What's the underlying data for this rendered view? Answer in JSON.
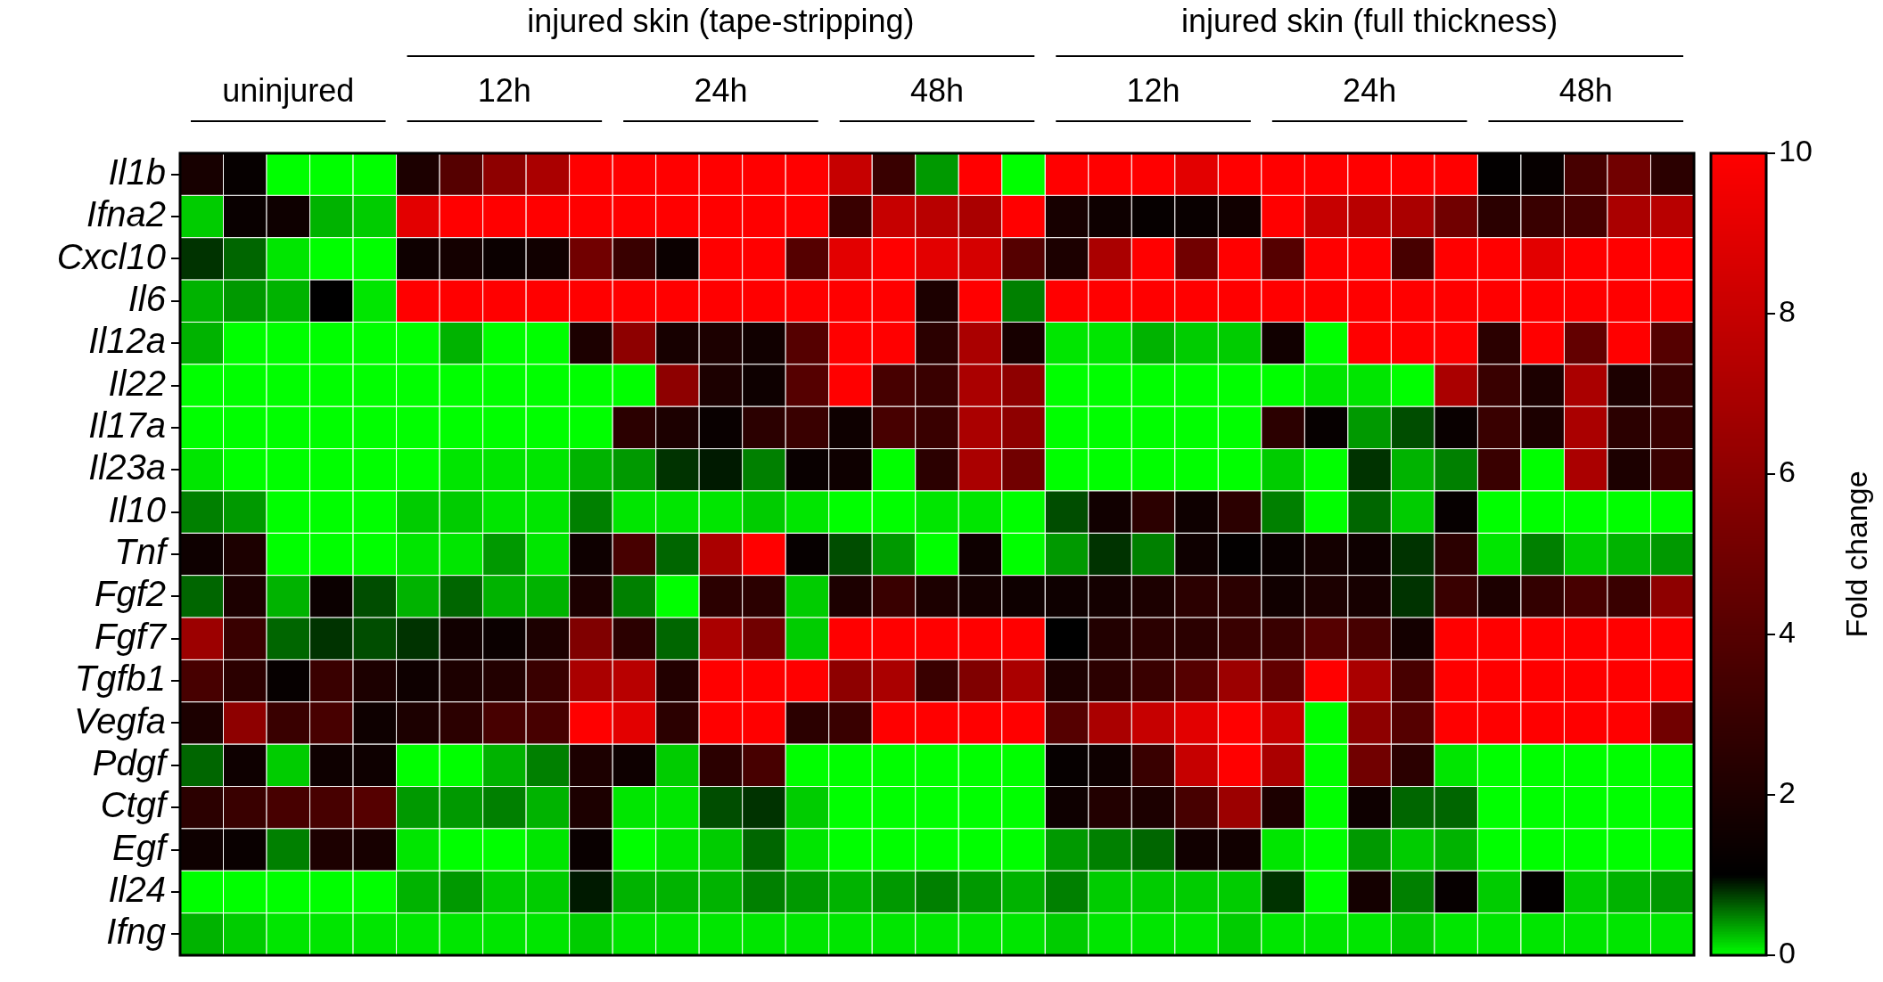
{
  "chart_data": {
    "type": "heatmap",
    "categories": [
      null,
      null,
      null,
      null,
      null,
      null,
      null,
      null,
      null,
      null,
      null,
      null,
      null,
      null,
      null,
      null,
      null,
      null,
      null,
      null,
      null,
      null,
      null,
      null,
      null,
      null,
      null,
      null,
      null,
      null,
      null,
      null,
      null,
      null,
      null
    ],
    "y_categories": [
      "Il1b",
      "Ifna2",
      "Cxcl10",
      "Il6",
      "Il12a",
      "Il22",
      "Il17a",
      "Il23a",
      "Il10",
      "Tnf",
      "Fgf2",
      "Fgf7",
      "Tgfb1",
      "Vegfa",
      "Pdgf",
      "Ctgf",
      "Egf",
      "Il24",
      "Ifng"
    ],
    "cells": [
      [
        1.8,
        1.2,
        0,
        0,
        0,
        2,
        4,
        6,
        7,
        10,
        10,
        10,
        10,
        10,
        10,
        8,
        3,
        0.4,
        10,
        0,
        10,
        10,
        10,
        9,
        10,
        10,
        10,
        10,
        10,
        10,
        1.1,
        1.2,
        3.5,
        5,
        2.5
      ],
      [
        0.2,
        1.3,
        1.5,
        0.3,
        0.2,
        9,
        10,
        10,
        10,
        10,
        10,
        10,
        10,
        10,
        10,
        3,
        8,
        7.5,
        7,
        10,
        1.8,
        1.5,
        1.2,
        1.3,
        1.6,
        10,
        8,
        7.5,
        7,
        5,
        2.5,
        3,
        3.5,
        7,
        7.5
      ],
      [
        0.8,
        0.6,
        0.1,
        0,
        0,
        1.5,
        1.7,
        1.4,
        1.6,
        5,
        3,
        1.4,
        10,
        10,
        4,
        9,
        10,
        9,
        8.5,
        4,
        2,
        7,
        10,
        5,
        10,
        4,
        10,
        10,
        3.5,
        10,
        10,
        9,
        10,
        10,
        10
      ],
      [
        0.3,
        0.4,
        0.3,
        1,
        0.1,
        10,
        10,
        10,
        10,
        10,
        10,
        10,
        10,
        10,
        10,
        10,
        10,
        2,
        10,
        0.5,
        10,
        10,
        10,
        10,
        10,
        10,
        10,
        10,
        10,
        10,
        10,
        10,
        10,
        10,
        10
      ],
      [
        0.3,
        0,
        0,
        0,
        0,
        0,
        0.3,
        0,
        0,
        2,
        6,
        1.8,
        2,
        1.6,
        4,
        10,
        10,
        2.5,
        7,
        1.8,
        0.1,
        0.1,
        0.3,
        0.2,
        0.2,
        1.6,
        0,
        10,
        10,
        10,
        2.5,
        10,
        4.5,
        10,
        4
      ],
      [
        0,
        0,
        0,
        0,
        0,
        0,
        0,
        0,
        0,
        0,
        0,
        6,
        2,
        1.5,
        4,
        10,
        3.5,
        3,
        7,
        6,
        0,
        0,
        0,
        0,
        0,
        0,
        0.1,
        0.1,
        0,
        7,
        3,
        2,
        7,
        2,
        3
      ],
      [
        0,
        0,
        0,
        0,
        0,
        0,
        0,
        0,
        0,
        0,
        2.5,
        2,
        1.3,
        2.5,
        3,
        1.5,
        3.5,
        3,
        7,
        6,
        0,
        0,
        0,
        0,
        0,
        2.5,
        1.2,
        0.4,
        0.7,
        1.3,
        3,
        2,
        7,
        2.5,
        3
      ],
      [
        0.1,
        0,
        0,
        0,
        0,
        0,
        0.1,
        0.1,
        0.1,
        0.3,
        0.4,
        0.8,
        0.9,
        0.5,
        1.3,
        1.5,
        0,
        2.5,
        7,
        5,
        0,
        0,
        0,
        0,
        0,
        0.2,
        0,
        0.8,
        0.3,
        0.5,
        3,
        0,
        7,
        2,
        3
      ],
      [
        0.5,
        0.4,
        0,
        0,
        0,
        0.2,
        0.2,
        0.1,
        0.1,
        0.5,
        0.1,
        0.1,
        0.1,
        0.2,
        0.1,
        0,
        0,
        0.1,
        0.1,
        0,
        0.7,
        1.6,
        2.5,
        1.5,
        2.5,
        0.5,
        0,
        0.6,
        0.2,
        1.2,
        0,
        0,
        0,
        0,
        0
      ],
      [
        1.5,
        2,
        0,
        0,
        0,
        0.1,
        0.1,
        0.4,
        0.1,
        1.5,
        3.5,
        0.6,
        7,
        10,
        1.2,
        0.7,
        0.4,
        0,
        1.5,
        0,
        0.4,
        0.8,
        0.5,
        1.5,
        1.1,
        1.3,
        1.7,
        1.5,
        0.8,
        2.5,
        0.1,
        0.5,
        0.2,
        0.3,
        0.4
      ],
      [
        0.6,
        2,
        0.3,
        1.4,
        0.7,
        0.3,
        0.6,
        0.3,
        0.3,
        2,
        0.5,
        0,
        2.5,
        2.5,
        0.2,
        2,
        3,
        2,
        1.7,
        1.5,
        1.5,
        1.7,
        2,
        2.5,
        2.5,
        1.6,
        2,
        1.8,
        0.8,
        3,
        2,
        2.8,
        3.5,
        3,
        6
      ],
      [
        6.5,
        3,
        0.6,
        0.8,
        0.7,
        0.8,
        1.6,
        1.4,
        2,
        5.5,
        2.5,
        0.6,
        7,
        5,
        0.2,
        10,
        10,
        10,
        10,
        10,
        1,
        2.2,
        2.5,
        2.5,
        3,
        3,
        4,
        3.5,
        1.7,
        10,
        10,
        10,
        10,
        10,
        10
      ],
      [
        3.5,
        2.5,
        1.2,
        3,
        2,
        1.5,
        2,
        2.2,
        3,
        7,
        7.5,
        2.2,
        10,
        10,
        10,
        6,
        7,
        3,
        5.5,
        7,
        2,
        2.5,
        3,
        4,
        6.5,
        4.5,
        10,
        7,
        3.5,
        10,
        10,
        10,
        10,
        10,
        10
      ],
      [
        2,
        6,
        3,
        3.5,
        1.5,
        2,
        2.5,
        3.5,
        3.5,
        10,
        9,
        2.5,
        10,
        10,
        2.5,
        3,
        10,
        10,
        10,
        10,
        4,
        7,
        8,
        9,
        10,
        8,
        0,
        6,
        4,
        10,
        10,
        10,
        10,
        10,
        5
      ],
      [
        0.6,
        1.5,
        0.2,
        1.5,
        1.5,
        0,
        0,
        0.3,
        0.5,
        2,
        1.5,
        0.2,
        2.5,
        3.5,
        0,
        0,
        0,
        0,
        0,
        0,
        1.2,
        1.5,
        3,
        8,
        10,
        7,
        0,
        5,
        2.5,
        0.1,
        0,
        0,
        0,
        0,
        0
      ],
      [
        2.5,
        3,
        3.5,
        3.5,
        4,
        0.4,
        0.4,
        0.5,
        0.3,
        2,
        0.1,
        0.1,
        0.7,
        0.8,
        0.2,
        0,
        0,
        0,
        0,
        0,
        1.5,
        2.2,
        2,
        3.5,
        6.5,
        2,
        0,
        1.5,
        0.6,
        0.6,
        0,
        0,
        0,
        0,
        0
      ],
      [
        1.5,
        1.3,
        0.5,
        2,
        1.8,
        0.1,
        0,
        0,
        0.1,
        1.3,
        0,
        0.1,
        0.2,
        0.6,
        0.1,
        0,
        0,
        0,
        0,
        0,
        0.4,
        0.5,
        0.6,
        1.6,
        1.6,
        0.1,
        0,
        0.4,
        0.2,
        0.3,
        0,
        0,
        0,
        0,
        0
      ],
      [
        0,
        0,
        0,
        0,
        0,
        0.3,
        0.4,
        0.2,
        0.2,
        0.9,
        0.3,
        0.3,
        0.3,
        0.5,
        0.4,
        0.3,
        0.4,
        0.5,
        0.4,
        0.3,
        0.5,
        0.2,
        0.2,
        0.2,
        0.2,
        0.8,
        0,
        1.7,
        0.5,
        1.2,
        0.2,
        1.1,
        0.2,
        0.3,
        0.4
      ],
      [
        0.3,
        0.2,
        0.1,
        0.1,
        0.1,
        0.1,
        0.1,
        0.1,
        0.1,
        0.2,
        0.1,
        0.1,
        0.1,
        0.1,
        0.1,
        0.1,
        0.1,
        0.1,
        0.1,
        0.1,
        0.2,
        0.1,
        0.1,
        0.1,
        0.2,
        0.1,
        0.1,
        0.1,
        0.2,
        0.1,
        0.1,
        0.1,
        0.1,
        0.1,
        0.1
      ]
    ],
    "clim": [
      0,
      10
    ],
    "cticks": [
      0,
      2,
      4,
      6,
      8,
      10
    ],
    "clabel": "Fold change",
    "annotations": [
      "injured skin (tape-stripping)",
      "injured skin (full thickness)",
      "uninjured",
      "12h",
      "24h",
      "48h",
      "12h",
      "24h",
      "48h"
    ]
  }
}
